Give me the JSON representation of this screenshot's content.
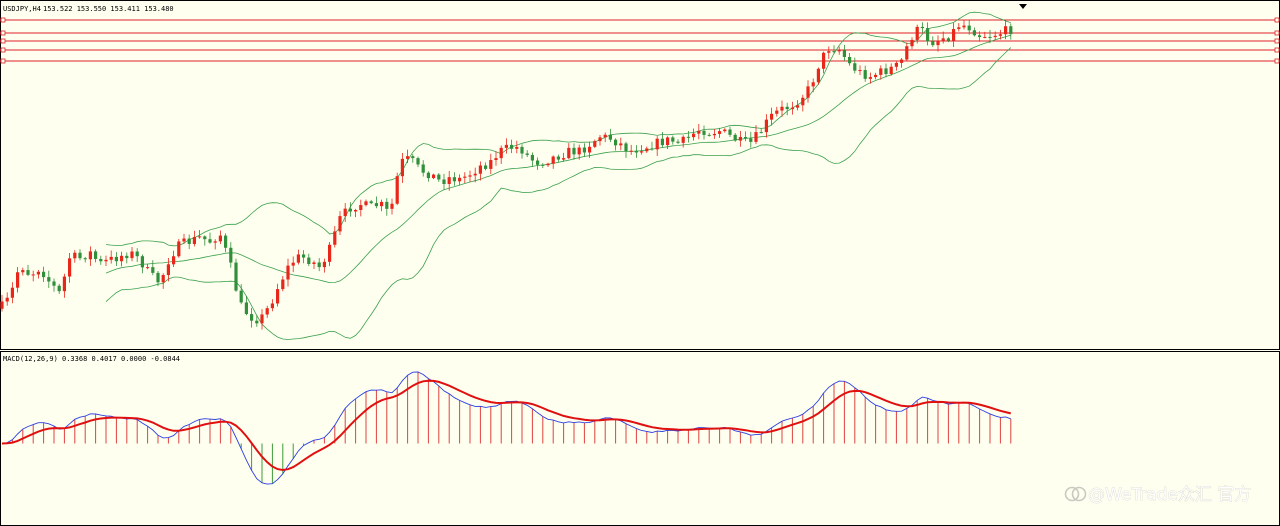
{
  "header": {
    "symbol": "USDJPY,H4",
    "quote": "153.522 153.550 153.411 153.480"
  },
  "indicator": {
    "label": "MACD(12,26,9) 0.3368 0.4017 0.0000 -0.0844"
  },
  "watermark": {
    "text": "@WeTrade众汇 官方",
    "icon": "logo-icon"
  },
  "colors": {
    "background": "#fffff0",
    "bull": "#e8261a",
    "bear": "#2f8f3a",
    "bands": "#3aa04c",
    "levels": "#e0202a",
    "macd": "#2c3fe0",
    "signal": "#e01010",
    "hist_pos": "#e04040",
    "hist_neg": "#3a9b3a"
  },
  "chart_data": [
    {
      "type": "candlestick",
      "symbol": "USDJPY",
      "timeframe": "H4",
      "last_bar": {
        "open": 153.522,
        "high": 153.55,
        "low": 153.411,
        "close": 153.48
      },
      "overlays": [
        "bollinger-upper",
        "bollinger-middle",
        "bollinger-lower"
      ],
      "horizontal_levels_count": 5,
      "grid": false,
      "close_path": [
        [
          0,
          0.06
        ],
        [
          10,
          0.12
        ],
        [
          20,
          0.3
        ],
        [
          30,
          0.24
        ],
        [
          40,
          0.28
        ],
        [
          50,
          0.2
        ],
        [
          60,
          0.14
        ],
        [
          70,
          0.34
        ],
        [
          80,
          0.33
        ],
        [
          90,
          0.36
        ],
        [
          100,
          0.3
        ],
        [
          110,
          0.32
        ],
        [
          120,
          0.34
        ],
        [
          130,
          0.36
        ],
        [
          140,
          0.32
        ],
        [
          150,
          0.24
        ],
        [
          160,
          0.2
        ],
        [
          170,
          0.34
        ],
        [
          180,
          0.4
        ],
        [
          190,
          0.42
        ],
        [
          200,
          0.44
        ],
        [
          210,
          0.42
        ],
        [
          220,
          0.46
        ],
        [
          230,
          0.3
        ],
        [
          240,
          0.08
        ],
        [
          250,
          0.02
        ],
        [
          260,
          0.0
        ],
        [
          270,
          0.08
        ],
        [
          280,
          0.2
        ],
        [
          290,
          0.3
        ],
        [
          300,
          0.34
        ],
        [
          310,
          0.32
        ],
        [
          320,
          0.28
        ],
        [
          330,
          0.38
        ],
        [
          340,
          0.54
        ],
        [
          350,
          0.6
        ],
        [
          360,
          0.62
        ],
        [
          370,
          0.6
        ],
        [
          380,
          0.62
        ],
        [
          390,
          0.56
        ],
        [
          400,
          0.84
        ],
        [
          410,
          0.86
        ],
        [
          420,
          0.8
        ],
        [
          430,
          0.78
        ],
        [
          440,
          0.74
        ],
        [
          450,
          0.76
        ],
        [
          460,
          0.75
        ],
        [
          470,
          0.78
        ],
        [
          480,
          0.82
        ],
        [
          490,
          0.84
        ],
        [
          500,
          0.9
        ],
        [
          510,
          0.92
        ],
        [
          520,
          0.92
        ],
        [
          530,
          0.86
        ],
        [
          540,
          0.84
        ],
        [
          550,
          0.86
        ],
        [
          560,
          0.88
        ],
        [
          570,
          0.9
        ],
        [
          580,
          0.9
        ],
        [
          590,
          0.94
        ],
        [
          600,
          0.98
        ],
        [
          610,
          0.97
        ],
        [
          620,
          0.94
        ],
        [
          630,
          0.9
        ],
        [
          640,
          0.92
        ],
        [
          650,
          0.93
        ],
        [
          660,
          0.95
        ],
        [
          670,
          0.96
        ],
        [
          680,
          0.94
        ],
        [
          690,
          0.98
        ],
        [
          700,
          1.02
        ],
        [
          710,
          1.0
        ],
        [
          720,
          1.01
        ],
        [
          730,
          0.98
        ],
        [
          740,
          0.95
        ],
        [
          750,
          0.94
        ],
        [
          760,
          1.0
        ],
        [
          770,
          1.08
        ],
        [
          780,
          1.12
        ],
        [
          790,
          1.14
        ],
        [
          800,
          1.18
        ],
        [
          810,
          1.24
        ],
        [
          820,
          1.38
        ],
        [
          830,
          1.46
        ],
        [
          840,
          1.44
        ],
        [
          850,
          1.36
        ],
        [
          860,
          1.32
        ],
        [
          870,
          1.3
        ],
        [
          880,
          1.32
        ],
        [
          890,
          1.34
        ],
        [
          900,
          1.36
        ],
        [
          910,
          1.5
        ],
        [
          920,
          1.56
        ],
        [
          930,
          1.48
        ],
        [
          940,
          1.5
        ],
        [
          950,
          1.52
        ],
        [
          960,
          1.58
        ],
        [
          970,
          1.56
        ],
        [
          980,
          1.52
        ],
        [
          990,
          1.52
        ],
        [
          1000,
          1.53
        ],
        [
          1010,
          1.55
        ]
      ]
    },
    {
      "type": "line",
      "name": "MACD(12,26,9)",
      "params": [
        12,
        26,
        9
      ],
      "values_shown": [
        0.3368,
        0.4017,
        0.0,
        -0.0844
      ],
      "histogram": true
    }
  ]
}
